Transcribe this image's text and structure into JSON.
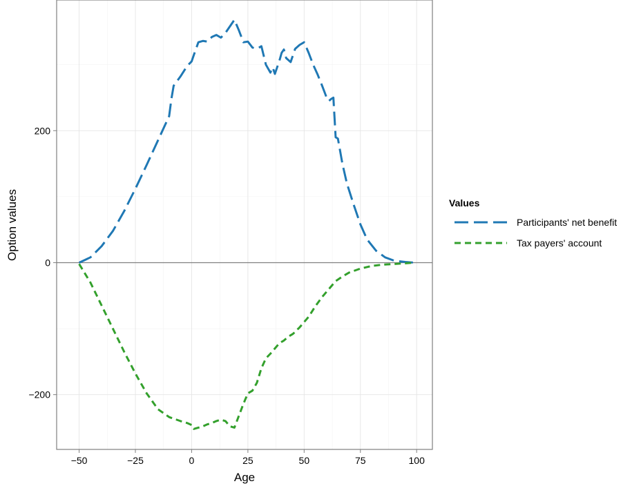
{
  "chart_data": {
    "type": "line",
    "xlabel": "Age",
    "ylabel": "Option values",
    "xlim": [
      -60,
      107
    ],
    "ylim": [
      -283,
      398
    ],
    "x_ticks": [
      -50,
      -25,
      0,
      25,
      50,
      75,
      100
    ],
    "x_tick_labels": [
      "−50",
      "−25",
      "0",
      "25",
      "50",
      "75",
      "100"
    ],
    "y_ticks": [
      -200,
      0,
      200
    ],
    "y_tick_labels": [
      "−200",
      "0",
      "200"
    ],
    "grid": true,
    "reference_line_y": 0,
    "legend": {
      "title": "Values",
      "position": "right"
    },
    "series": [
      {
        "name": "Participants' net benefit",
        "color": "#1F78B4",
        "dash": "long",
        "points": [
          [
            -50,
            0
          ],
          [
            -45,
            8
          ],
          [
            -40,
            25
          ],
          [
            -35,
            48
          ],
          [
            -30,
            78
          ],
          [
            -25,
            112
          ],
          [
            -20,
            148
          ],
          [
            -15,
            185
          ],
          [
            -10,
            222
          ],
          [
            -9,
            248
          ],
          [
            -8,
            268
          ],
          [
            -5,
            282
          ],
          [
            -2,
            298
          ],
          [
            0,
            305
          ],
          [
            1,
            315
          ],
          [
            3,
            334
          ],
          [
            5,
            336
          ],
          [
            7,
            335
          ],
          [
            9,
            342
          ],
          [
            11,
            345
          ],
          [
            13,
            341
          ],
          [
            15,
            348
          ],
          [
            17,
            358
          ],
          [
            19,
            368
          ],
          [
            21,
            352
          ],
          [
            23,
            334
          ],
          [
            25,
            335
          ],
          [
            27,
            326
          ],
          [
            29,
            324
          ],
          [
            31,
            328
          ],
          [
            33,
            300
          ],
          [
            35,
            288
          ],
          [
            36,
            296
          ],
          [
            37,
            286
          ],
          [
            39,
            306
          ],
          [
            40,
            318
          ],
          [
            41,
            323
          ],
          [
            42,
            310
          ],
          [
            44,
            304
          ],
          [
            46,
            324
          ],
          [
            48,
            330
          ],
          [
            50,
            334
          ],
          [
            52,
            318
          ],
          [
            54,
            300
          ],
          [
            56,
            285
          ],
          [
            58,
            268
          ],
          [
            60,
            250
          ],
          [
            61,
            245
          ],
          [
            62,
            248
          ],
          [
            63,
            250
          ],
          [
            64,
            190
          ],
          [
            65,
            188
          ],
          [
            67,
            150
          ],
          [
            69,
            120
          ],
          [
            72,
            88
          ],
          [
            75,
            58
          ],
          [
            78,
            35
          ],
          [
            82,
            18
          ],
          [
            86,
            8
          ],
          [
            90,
            3
          ],
          [
            95,
            1
          ],
          [
            99,
            0
          ]
        ]
      },
      {
        "name": "Tax payers' account",
        "color": "#33A02C",
        "dash": "short",
        "points": [
          [
            -50,
            -2
          ],
          [
            -45,
            -30
          ],
          [
            -40,
            -65
          ],
          [
            -35,
            -100
          ],
          [
            -30,
            -135
          ],
          [
            -25,
            -168
          ],
          [
            -20,
            -198
          ],
          [
            -15,
            -222
          ],
          [
            -10,
            -234
          ],
          [
            -5,
            -240
          ],
          [
            -2,
            -243
          ],
          [
            0,
            -246
          ],
          [
            1,
            -252
          ],
          [
            3,
            -250
          ],
          [
            5,
            -248
          ],
          [
            7,
            -245
          ],
          [
            9,
            -243
          ],
          [
            11,
            -240
          ],
          [
            13,
            -238
          ],
          [
            15,
            -240
          ],
          [
            17,
            -248
          ],
          [
            19,
            -250
          ],
          [
            21,
            -232
          ],
          [
            23,
            -214
          ],
          [
            25,
            -198
          ],
          [
            27,
            -194
          ],
          [
            29,
            -182
          ],
          [
            31,
            -160
          ],
          [
            33,
            -145
          ],
          [
            35,
            -138
          ],
          [
            37,
            -130
          ],
          [
            39,
            -122
          ],
          [
            41,
            -118
          ],
          [
            43,
            -112
          ],
          [
            45,
            -108
          ],
          [
            48,
            -98
          ],
          [
            52,
            -82
          ],
          [
            55,
            -66
          ],
          [
            58,
            -52
          ],
          [
            61,
            -40
          ],
          [
            64,
            -28
          ],
          [
            67,
            -21
          ],
          [
            70,
            -15
          ],
          [
            75,
            -9
          ],
          [
            80,
            -5
          ],
          [
            85,
            -3
          ],
          [
            90,
            -2
          ],
          [
            95,
            -1
          ],
          [
            99,
            0
          ]
        ]
      }
    ]
  }
}
